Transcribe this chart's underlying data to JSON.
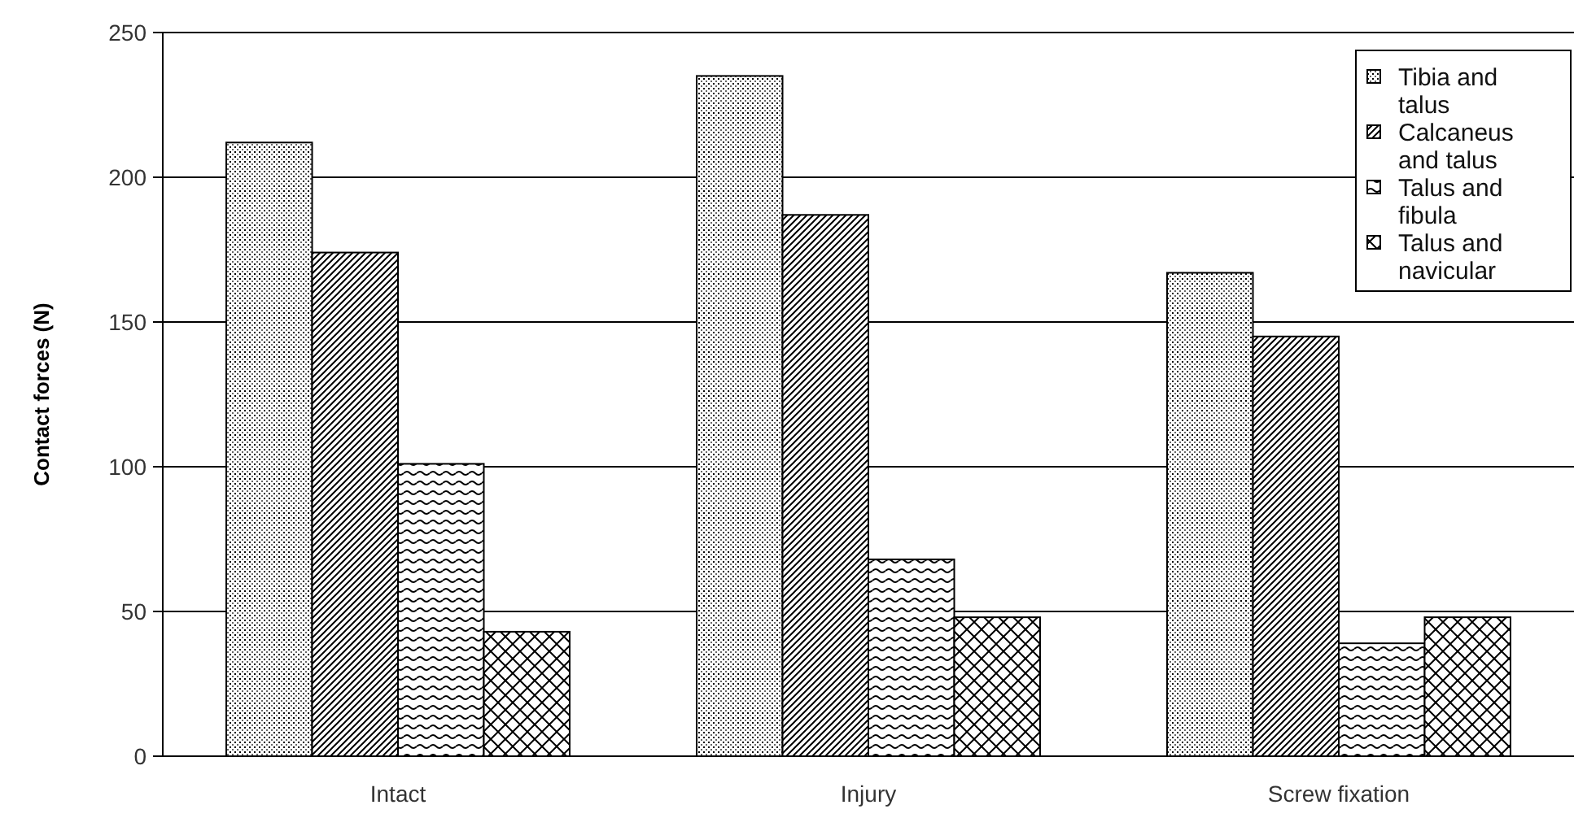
{
  "chart_data": {
    "type": "bar",
    "ylabel": "Contact forces (N)",
    "categories": [
      "Intact",
      "Injury",
      "Screw fixation"
    ],
    "series": [
      {
        "name": "Tibia and talus",
        "color": "#000000",
        "values": [
          212,
          235,
          167
        ]
      },
      {
        "name": "Calcaneus and talus",
        "color": "#000000",
        "values": [
          174,
          187,
          145
        ]
      },
      {
        "name": "Talus and fibula",
        "color": "#000000",
        "values": [
          101,
          68,
          39
        ]
      },
      {
        "name": "Talus and navicular",
        "color": "#000000",
        "values": [
          43,
          48,
          48
        ]
      }
    ],
    "ylim": [
      0,
      250
    ],
    "yticks": [
      0,
      50,
      100,
      150,
      200,
      250
    ],
    "grid": "y",
    "legend": "top right"
  }
}
